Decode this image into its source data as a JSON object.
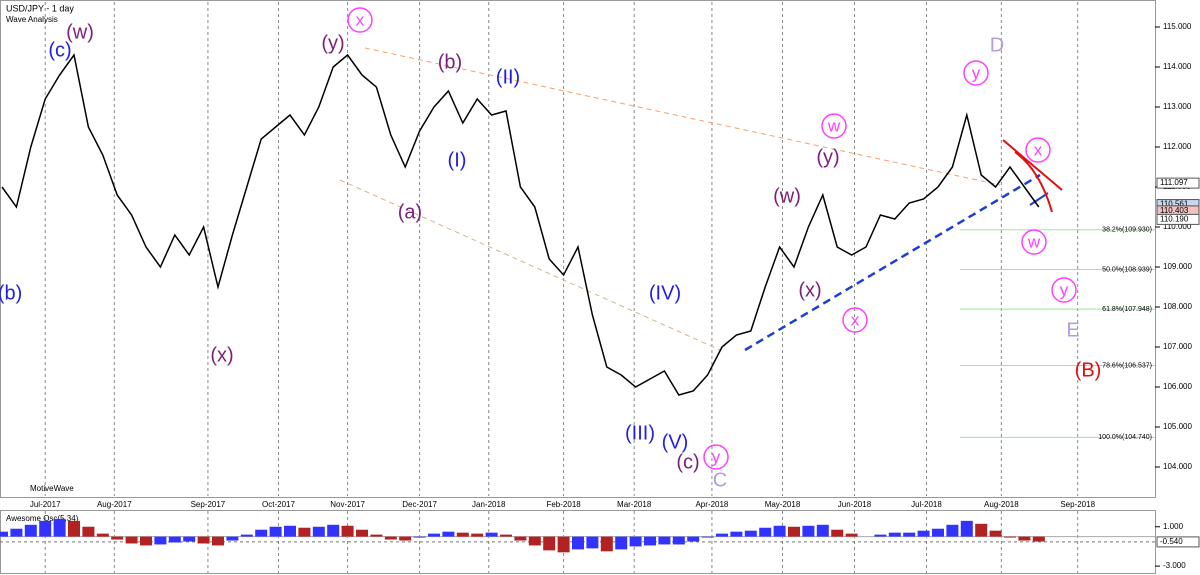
{
  "chart_data": [
    {
      "type": "line",
      "title": "USD/JPY - 1 day",
      "subtitle": "Wave Analysis",
      "footer": "MotiveWave",
      "color": "#000000",
      "categories": [
        null,
        null,
        null,
        null,
        null,
        null,
        null,
        null,
        null,
        null,
        null,
        null,
        null,
        null,
        null,
        null,
        null,
        null,
        null,
        null,
        null,
        null,
        null,
        null,
        null,
        null,
        null,
        null,
        null,
        null,
        null,
        null,
        null,
        null,
        null,
        null,
        null,
        null,
        null,
        null,
        null,
        null,
        null,
        null,
        null,
        null,
        null,
        null,
        null,
        null,
        null,
        null,
        null,
        null,
        null,
        null,
        null,
        null,
        null,
        null,
        null,
        null,
        null,
        null,
        null,
        null,
        null,
        null,
        null,
        null,
        null,
        null,
        null
      ],
      "values": [
        111.0,
        110.5,
        112.0,
        113.2,
        113.8,
        114.3,
        112.5,
        111.8,
        110.8,
        110.3,
        109.5,
        109.0,
        109.8,
        109.3,
        110.0,
        108.5,
        109.8,
        111.0,
        112.2,
        112.5,
        112.8,
        112.3,
        113.0,
        114.0,
        114.3,
        113.8,
        113.5,
        112.3,
        111.5,
        112.4,
        113.0,
        113.4,
        112.6,
        113.2,
        112.8,
        112.9,
        111.0,
        110.5,
        109.2,
        108.8,
        109.5,
        107.8,
        106.5,
        106.3,
        106.0,
        106.2,
        106.4,
        105.8,
        105.9,
        106.3,
        107.0,
        107.3,
        107.4,
        108.5,
        109.5,
        109.0,
        110.0,
        110.8,
        109.5,
        109.3,
        109.5,
        110.3,
        110.2,
        110.6,
        110.7,
        111.0,
        111.5,
        112.8,
        111.3,
        111.0,
        111.5,
        111.0,
        110.5
      ],
      "xticks": [
        {
          "value": 3,
          "label": "Jul-2017"
        },
        {
          "value": 7.8,
          "label": "Aug-2017"
        },
        {
          "value": 14.3,
          "label": "Sep-2017"
        },
        {
          "value": 19.2,
          "label": "Oct-2017"
        },
        {
          "value": 24,
          "label": "Nov-2017"
        },
        {
          "value": 29,
          "label": "Dec-2017"
        },
        {
          "value": 33.8,
          "label": "Jan-2018"
        },
        {
          "value": 39,
          "label": "Feb-2018"
        },
        {
          "value": 43.9,
          "label": "Mar-2018"
        },
        {
          "value": 49.3,
          "label": "Apr-2018"
        },
        {
          "value": 54.2,
          "label": "May-2018"
        },
        {
          "value": 59.2,
          "label": "Jun-2018"
        },
        {
          "value": 64.2,
          "label": "Jul-2018"
        },
        {
          "value": 69.4,
          "label": "Aug-2018"
        },
        {
          "value": 74.7,
          "label": "Sep-2018"
        }
      ],
      "ylim": [
        103.6,
        115.5
      ],
      "yticks": [
        {
          "value": 104,
          "label": "104.000"
        },
        {
          "value": 105,
          "label": "105.000"
        },
        {
          "value": 106,
          "label": "106.000"
        },
        {
          "value": 107,
          "label": "107.000"
        },
        {
          "value": 108,
          "label": "108.000"
        },
        {
          "value": 109,
          "label": "109.000"
        },
        {
          "value": 110,
          "label": "110.000"
        },
        {
          "value": 111,
          "label": "111.000"
        },
        {
          "value": 112,
          "label": "112.000"
        },
        {
          "value": 113,
          "label": "113.000"
        },
        {
          "value": 114,
          "label": "114.000"
        },
        {
          "value": 115,
          "label": "115.000"
        }
      ],
      "price_markers": [
        {
          "value": 111.097,
          "label": "111.097",
          "color": "#ffffff"
        },
        {
          "value": 110.561,
          "label": "110.561",
          "color": "#c8d8f0"
        },
        {
          "value": 110.403,
          "label": "110.403",
          "color": "#f3c0c0"
        },
        {
          "value": 110.19,
          "label": "110.190",
          "color": "#ffffff"
        }
      ],
      "fib_levels": [
        {
          "value": 109.93,
          "label": "38.2%(109.930)"
        },
        {
          "value": 108.939,
          "label": "50.0%(108.939)"
        },
        {
          "value": 107.948,
          "label": "61.8%(107.948)"
        },
        {
          "value": 106.537,
          "label": "78.6%(106.537)"
        },
        {
          "value": 104.74,
          "label": "100.0%(104.740)"
        }
      ],
      "fib_color": "#90ee90",
      "annotations": [
        {
          "text": "(w)",
          "color": "#7b1f7b"
        },
        {
          "text": "(c)",
          "color": "#1e1ee6"
        },
        {
          "text": "(b)",
          "color": "#1e1ee6"
        },
        {
          "text": "(x)",
          "color": "#7b1f7b"
        },
        {
          "text": "x",
          "color": "#ff40ff",
          "circle": true
        },
        {
          "text": "(y)",
          "color": "#7b1f7b"
        },
        {
          "text": "(b)",
          "color": "#7b1f7b"
        },
        {
          "text": "(II)",
          "color": "#1e1ee6"
        },
        {
          "text": "(a)",
          "color": "#7b1f7b"
        },
        {
          "text": "(I)",
          "color": "#1e1ee6"
        },
        {
          "text": "(IV)",
          "color": "#1e1ee6"
        },
        {
          "text": "(III)",
          "color": "#1e1ee6"
        },
        {
          "text": "(V)",
          "color": "#1e1ee6"
        },
        {
          "text": "(c)",
          "color": "#7b1f7b"
        },
        {
          "text": "y",
          "color": "#ff40ff",
          "circle": true
        },
        {
          "text": "C",
          "color": "#b39ddb"
        },
        {
          "text": "(w)",
          "color": "#7b1f7b"
        },
        {
          "text": "(x)",
          "color": "#7b1f7b"
        },
        {
          "text": "(y)",
          "color": "#7b1f7b"
        },
        {
          "text": "w",
          "color": "#ff40ff",
          "circle": true
        },
        {
          "text": "x",
          "color": "#ff40ff",
          "circle": true
        },
        {
          "text": "y",
          "color": "#ff40ff",
          "circle": true
        },
        {
          "text": "D",
          "color": "#b39ddb"
        },
        {
          "text": "x",
          "color": "#ff40ff",
          "circle": true
        },
        {
          "text": "w",
          "color": "#ff40ff",
          "circle": true
        },
        {
          "text": "y",
          "color": "#ff40ff",
          "circle": true
        },
        {
          "text": "E",
          "color": "#b39ddb"
        },
        {
          "text": "(B)",
          "color": "#e01010"
        }
      ]
    },
    {
      "type": "bar",
      "title": "Awesome Osc(5,34)",
      "up_color": "#3333ff",
      "down_color": "#b22222",
      "values": [
        0.5,
        0.8,
        1.2,
        1.6,
        1.8,
        1.6,
        1.0,
        0.3,
        -0.3,
        -0.7,
        -0.9,
        -0.8,
        -0.6,
        -0.5,
        -0.7,
        -0.9,
        -0.4,
        0.2,
        0.7,
        1.0,
        1.1,
        0.9,
        1.0,
        1.2,
        1.1,
        0.7,
        0.2,
        -0.3,
        -0.4,
        -0.1,
        0.3,
        0.5,
        0.4,
        0.3,
        0.4,
        0.2,
        -0.4,
        -0.9,
        -1.4,
        -1.6,
        -1.3,
        -1.2,
        -1.5,
        -1.3,
        -1.0,
        -0.9,
        -0.8,
        -0.8,
        -0.5,
        -0.1,
        0.3,
        0.5,
        0.6,
        0.9,
        1.1,
        1.0,
        1.1,
        1.2,
        0.7,
        0.3,
        0.0,
        0.2,
        0.4,
        0.4,
        0.6,
        0.8,
        1.2,
        1.6,
        1.3,
        0.6,
        -0.1,
        -0.4,
        -0.5
      ],
      "ylim": [
        -3.6,
        2.5
      ],
      "yticks": [
        {
          "value": 1,
          "label": "1.000"
        },
        {
          "value": -3,
          "label": "-3.000"
        }
      ],
      "price_markers": [
        {
          "value": -0.54,
          "label": "-0.540",
          "color": "#ffffff"
        }
      ]
    }
  ]
}
